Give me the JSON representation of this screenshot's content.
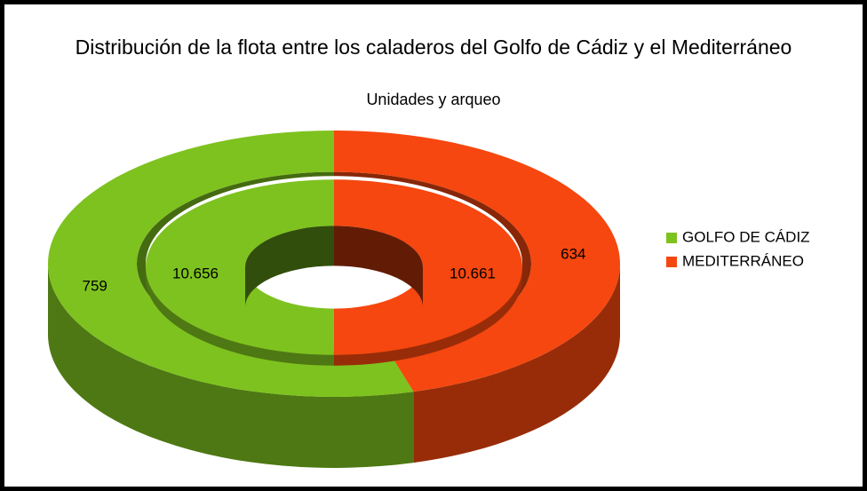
{
  "chart_data": {
    "type": "pie",
    "title": "Distribución de la flota entre los caladeros del Golfo de Cádiz y el Mediterráneo",
    "subtitle": "Unidades y arqueo",
    "categories": [
      "GOLFO DE CÁDIZ",
      "MEDITERRÁNEO"
    ],
    "colors": [
      "#7ec21f",
      "#f5470f"
    ],
    "series": [
      {
        "values": [
          759,
          634
        ]
      },
      {
        "values": [
          10656,
          10661
        ],
        "value_labels": [
          "10.656",
          "10.661"
        ]
      }
    ],
    "legend": "right"
  }
}
